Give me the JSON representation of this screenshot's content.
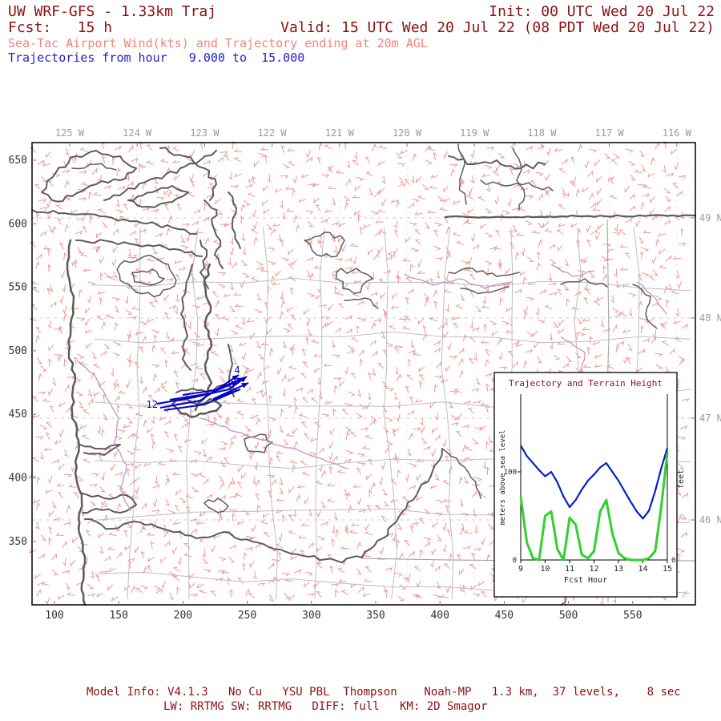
{
  "header": {
    "line1_left": "UW WRF-GFS - 1.33km Traj",
    "line1_right": "Init: 00 UTC Wed 20 Jul 22",
    "line2_left": "Fcst:   15 h",
    "line2_right": "Valid: 15 UTC Wed 20 Jul 22 (08 PDT Wed 20 Jul 22)",
    "line3": "Sea-Tac Airport Wind(kts) and Trajectory ending at 20m AGL",
    "line4": "Trajectories from hour   9.000 to  15.000"
  },
  "footer": {
    "line1": "Model Info: V4.1.3   No Cu   YSU PBL  Thompson    Noah-MP   1.3 km,  37 levels,    8 sec",
    "line2": "LW: RRTMG SW: RRTMG   DIFF: full   KM: 2D Smagor"
  },
  "map": {
    "lon_labels": [
      "125 W",
      "124 W",
      "123 W",
      "122 W",
      "121 W",
      "120 W",
      "119 W",
      "118 W",
      "117 W",
      "116 W"
    ],
    "lat_labels": [
      "49 N",
      "48 N",
      "47 N",
      "46 N"
    ],
    "y_labels": [
      "650",
      "600",
      "550",
      "500",
      "450",
      "400",
      "350"
    ],
    "x_labels": [
      "100",
      "150",
      "200",
      "250",
      "300",
      "350",
      "400",
      "450",
      "500",
      "550"
    ],
    "trajectory_point_labels": [
      "4",
      "12"
    ]
  },
  "inset": {
    "title": "Trajectory and Terrain Height",
    "ylabel_left": "meters above sea level",
    "ylabel_right": "feet",
    "xlabel": "Fcst Hour",
    "x_tick_labels": [
      "9",
      "10",
      "11",
      "12",
      "13",
      "14",
      "15"
    ],
    "left_tick_labels": [
      "100",
      "0"
    ],
    "right_tick_labels": [
      "0"
    ]
  },
  "chart_data": {
    "type": "line",
    "title": "Trajectory and Terrain Height",
    "xlabel": "Fcst Hour",
    "ylabel": "meters above sea level",
    "ylabel_right": "feet",
    "x_range": [
      9,
      15
    ],
    "ylim": [
      0,
      160
    ],
    "y_ticks_labeled": [
      0,
      100
    ],
    "grid": false,
    "legend": "none",
    "series": [
      {
        "name": "trajectory_height_m",
        "color": "#0022cc",
        "x": [
          9,
          9.25,
          9.5,
          9.75,
          10,
          10.25,
          10.5,
          10.75,
          11,
          11.25,
          11.5,
          11.75,
          12,
          12.25,
          12.5,
          12.75,
          13,
          13.25,
          13.5,
          13.75,
          14,
          14.25,
          14.5,
          14.75,
          15
        ],
        "y": [
          130,
          118,
          110,
          102,
          95,
          100,
          88,
          72,
          60,
          68,
          80,
          90,
          97,
          105,
          110,
          100,
          90,
          78,
          66,
          55,
          47,
          56,
          78,
          104,
          127
        ]
      },
      {
        "name": "terrain_height_m",
        "color": "#2fd12f",
        "x": [
          9,
          9.25,
          9.5,
          9.75,
          10,
          10.25,
          10.5,
          10.75,
          11,
          11.25,
          11.5,
          11.75,
          12,
          12.25,
          12.5,
          12.75,
          13,
          13.25,
          13.5,
          13.75,
          14,
          14.25,
          14.5,
          14.75,
          15
        ],
        "y": [
          72,
          20,
          2,
          0,
          50,
          55,
          12,
          0,
          48,
          40,
          6,
          2,
          10,
          55,
          68,
          30,
          8,
          2,
          0,
          0,
          0,
          2,
          10,
          60,
          122
        ]
      }
    ]
  },
  "colors": {
    "header_dark_red": "#8b1111",
    "subtitle_salmon": "#f4827e",
    "subtitle_blue": "#2323cd",
    "trajectory_blue": "#0000cd",
    "terrain_green": "#2fd12f",
    "traj_height_blue": "#0022cc",
    "barb_red": "#f0827a",
    "coast_gray": "#5c5c5c",
    "county_gray": "#bdbdbd",
    "latlon_gray": "#9a9a9a",
    "purple_line": "#c88fc8"
  }
}
